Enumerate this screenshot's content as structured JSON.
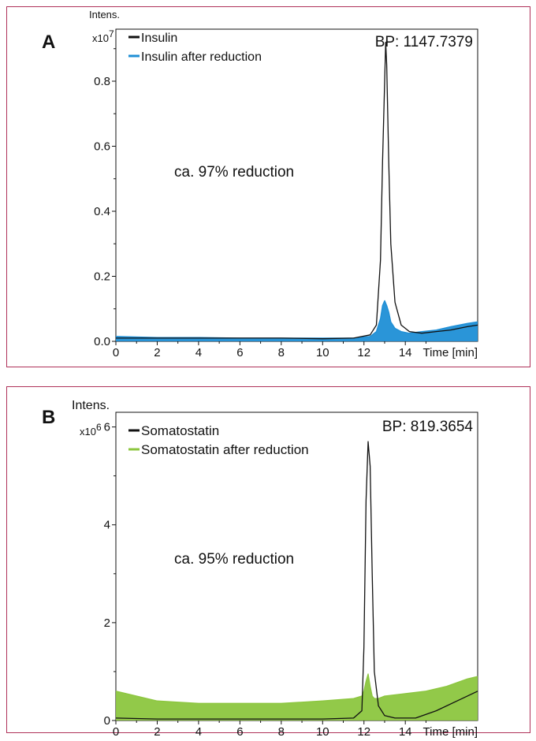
{
  "chart_data": [
    {
      "type": "line",
      "panel_label": "A",
      "ylabel": "Intens.",
      "yscale": "x10",
      "yscale_exp": "7",
      "xlabel": "Time [min]",
      "xlim": [
        0,
        17.5
      ],
      "ylim": [
        0,
        0.96
      ],
      "xticks": [
        0,
        2,
        4,
        6,
        8,
        10,
        12,
        14
      ],
      "yticks": [
        0.0,
        0.2,
        0.4,
        0.6,
        0.8
      ],
      "ytick_labels": [
        "0.0",
        "0.2",
        "0.4",
        "0.6",
        "0.8"
      ],
      "bp_label": "BP: 1147.7379",
      "annotation": "ca. 97% reduction",
      "legend_position": "top-left",
      "series": [
        {
          "name": "Insulin",
          "color": "#111111",
          "fill": false,
          "x": [
            0,
            2,
            4,
            6,
            8,
            10,
            11.5,
            12.3,
            12.6,
            12.8,
            12.9,
            13.0,
            13.05,
            13.1,
            13.2,
            13.3,
            13.5,
            13.8,
            14.2,
            14.8,
            15.5,
            16.2,
            17.0,
            17.5
          ],
          "y": [
            0.01,
            0.01,
            0.01,
            0.01,
            0.01,
            0.008,
            0.01,
            0.02,
            0.05,
            0.25,
            0.55,
            0.8,
            0.92,
            0.85,
            0.55,
            0.3,
            0.12,
            0.05,
            0.03,
            0.025,
            0.03,
            0.035,
            0.045,
            0.05
          ]
        },
        {
          "name": "Insulin after reduction",
          "color": "#1f8fd6",
          "fill": true,
          "x": [
            0,
            2,
            4,
            6,
            8,
            10,
            11.5,
            12.3,
            12.6,
            12.8,
            12.9,
            13.0,
            13.1,
            13.2,
            13.3,
            13.5,
            13.8,
            14.2,
            14.8,
            15.5,
            16.2,
            17.0,
            17.5
          ],
          "y": [
            0.015,
            0.012,
            0.012,
            0.01,
            0.01,
            0.01,
            0.01,
            0.015,
            0.03,
            0.07,
            0.11,
            0.125,
            0.11,
            0.09,
            0.06,
            0.04,
            0.03,
            0.025,
            0.03,
            0.035,
            0.045,
            0.055,
            0.06
          ]
        }
      ]
    },
    {
      "type": "line",
      "panel_label": "B",
      "ylabel": "Intens.",
      "yscale": "x10",
      "yscale_exp": "6",
      "xlabel": "Time [min]",
      "xlim": [
        0,
        17.5
      ],
      "ylim": [
        0,
        6.3
      ],
      "xticks": [
        0,
        2,
        4,
        6,
        8,
        10,
        12,
        14
      ],
      "yticks": [
        0,
        2,
        4,
        6
      ],
      "ytick_labels": [
        "0",
        "2",
        "4",
        "6"
      ],
      "bp_label": "BP: 819.3654",
      "annotation": "ca. 95% reduction",
      "legend_position": "top-left",
      "series": [
        {
          "name": "Somatostatin",
          "color": "#111111",
          "fill": false,
          "x": [
            0,
            2,
            4,
            6,
            8,
            10,
            11.5,
            11.9,
            12.0,
            12.1,
            12.2,
            12.3,
            12.4,
            12.5,
            12.7,
            13.0,
            13.5,
            14.5,
            15.5,
            16.5,
            17.5
          ],
          "y": [
            0.05,
            0.03,
            0.03,
            0.03,
            0.03,
            0.03,
            0.05,
            0.2,
            1.5,
            4.5,
            5.7,
            5.2,
            3.0,
            1.0,
            0.3,
            0.1,
            0.05,
            0.05,
            0.2,
            0.4,
            0.6
          ]
        },
        {
          "name": "Somatostatin after reduction",
          "color": "#8cc63f",
          "fill": true,
          "x": [
            0,
            2,
            4,
            6,
            8,
            10,
            11.5,
            11.9,
            12.0,
            12.1,
            12.2,
            12.3,
            12.4,
            12.5,
            12.7,
            13.0,
            14.0,
            15.0,
            16.0,
            17.0,
            17.5
          ],
          "y": [
            0.6,
            0.4,
            0.35,
            0.35,
            0.35,
            0.4,
            0.45,
            0.5,
            0.6,
            0.8,
            0.95,
            0.7,
            0.5,
            0.45,
            0.45,
            0.5,
            0.55,
            0.6,
            0.7,
            0.85,
            0.9
          ]
        }
      ]
    }
  ]
}
